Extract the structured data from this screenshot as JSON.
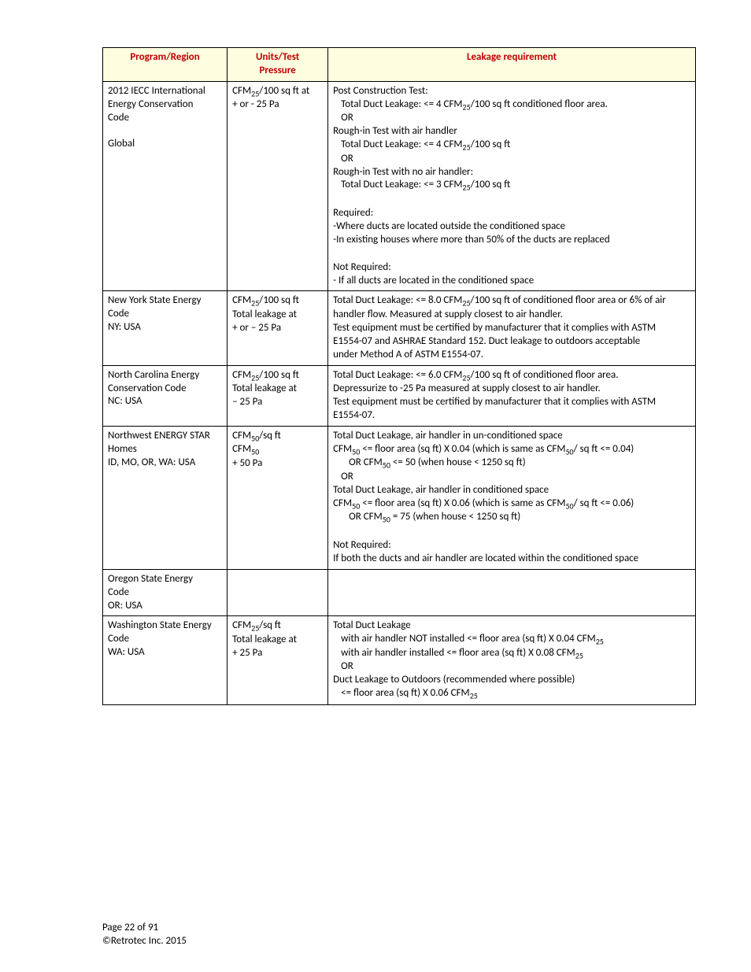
{
  "table": {
    "headers": {
      "col1": "Program/Region",
      "col2_line1": "Units/Test",
      "col2_line2": "Pressure",
      "col3": "Leakage requirement"
    },
    "headerStyle": {
      "background": "#fdfde0",
      "color": "#c00000",
      "fontWeight": "bold"
    },
    "rows": [
      {
        "program_l1": "2012 IECC International",
        "program_l2": "Energy Conservation",
        "program_l3": "Code",
        "program_l4": "",
        "program_l5": "Global",
        "units_l1_pre": "CFM",
        "units_l1_sub": "25",
        "units_l1_post": "/100 sq ft at",
        "units_l2": "+ or - 25 Pa",
        "req": {
          "l1": "Post Construction Test:",
          "l2_pre": "Total Duct Leakage:  <= 4 CFM",
          "l2_sub": "25",
          "l2_post": "/100 sq ft conditioned floor area.",
          "l3": "OR",
          "l4": "Rough-in Test with air handler",
          "l5_pre": "Total Duct Leakage:  <= 4 CFM",
          "l5_sub": "25",
          "l5_post": "/100 sq ft",
          "l6": "OR",
          "l7": "Rough-in Test with no air handler:",
          "l8_pre": "Total Duct Leakage:  <= 3 CFM",
          "l8_sub": "25",
          "l8_post": "/100 sq ft",
          "l9": "Required:",
          "l10": "-Where ducts are located outside the conditioned space",
          "l11": "-In existing houses where more than 50% of the ducts are replaced",
          "l12": "Not Required:",
          "l13": "- If all ducts are located in the conditioned space"
        }
      },
      {
        "program_l1": "New York State Energy",
        "program_l2": "Code",
        "program_l3": "NY:  USA",
        "units_l1_pre": "CFM",
        "units_l1_sub": "25",
        "units_l1_post": "/100 sq ft",
        "units_l2": "Total leakage at",
        "units_l3": "+ or – 25 Pa",
        "req": {
          "l1_pre": "Total Duct Leakage:  <= 8.0 CFM",
          "l1_sub": "25",
          "l1_post": "/100 sq ft of conditioned floor area or 6% of air",
          "l2": "handler flow.  Measured at supply closest to air handler.",
          "l3": "Test equipment must be certified by manufacturer that it complies with ASTM",
          "l4": "E1554-07 and ASHRAE Standard 152.  Duct leakage to outdoors acceptable",
          "l5": "under Method A of ASTM E1554-07."
        }
      },
      {
        "program_l1": "North Carolina Energy",
        "program_l2": "Conservation Code",
        "program_l3": "NC: USA",
        "units_l1_pre": "CFM",
        "units_l1_sub": "25",
        "units_l1_post": "/100 sq ft",
        "units_l2": "Total leakage at",
        "units_l3": "– 25 Pa",
        "req": {
          "l1_pre": "Total Duct Leakage:  <= 6.0 CFM",
          "l1_sub": "25",
          "l1_post": "/100 sq ft of conditioned floor area.",
          "l2": "Depressurize to -25 Pa measured at supply closest to air handler.",
          "l3": "Test equipment must be certified by manufacturer that it complies with ASTM",
          "l4": "E1554-07."
        }
      },
      {
        "program_l1": "Northwest ENERGY STAR",
        "program_l2": "Homes",
        "program_l3": "ID, MO, OR, WA:  USA",
        "units_l1_pre": "CFM",
        "units_l1_sub": "50",
        "units_l1_post": "/sq ft",
        "units_l2_pre": "CFM",
        "units_l2_sub": "50",
        "units_l3": "+ 50 Pa",
        "req": {
          "l1": "Total Duct Leakage, air handler in un-conditioned space",
          "l2_pre": "CFM",
          "l2_sub": "50",
          "l2_mid": " <= floor area (sq ft) X 0.04 (which is same as CFM",
          "l2_sub2": "50",
          "l2_post": "/ sq ft <= 0.04)",
          "l3_pre": "OR CFM",
          "l3_sub": "50",
          "l3_post": " <= 50 (when house < 1250 sq ft)",
          "l4": "OR",
          "l5": "Total Duct Leakage, air handler in conditioned space",
          "l6_pre": "CFM",
          "l6_sub": "50",
          "l6_mid": " <= floor area (sq ft) X 0.06 (which is same as CFM",
          "l6_sub2": "50",
          "l6_post": "/ sq ft <= 0.06)",
          "l7_pre": "OR CFM",
          "l7_sub": "50",
          "l7_post": " = 75 (when house < 1250 sq ft)",
          "l8": "Not Required:",
          "l9": "If both the ducts and air handler are located within the conditioned space"
        }
      },
      {
        "program_l1": "Oregon State Energy",
        "program_l2": "Code",
        "program_l3": "OR:  USA"
      },
      {
        "program_l1": "Washington State Energy",
        "program_l2": "Code",
        "program_l3": "WA:  USA",
        "units_l1_pre": "CFM",
        "units_l1_sub": "25",
        "units_l1_post": "/sq ft",
        "units_l2": "Total leakage at",
        "units_l3": "+ 25 Pa",
        "req": {
          "l1": "Total Duct Leakage",
          "l2_pre": "with air handler NOT installed <= floor area (sq ft) X 0.04 CFM",
          "l2_sub": "25",
          "l3_pre": "with air handler installed <= floor area (sq ft) X 0.08 CFM",
          "l3_sub": "25",
          "l4": "OR",
          "l5": "Duct Leakage to Outdoors (recommended where possible)",
          "l6_pre": "<= floor area (sq ft) X 0.06 CFM",
          "l6_sub": "25"
        }
      }
    ]
  },
  "footer": {
    "page": "Page 22 of 91",
    "copyright": "©Retrotec Inc. 2015"
  }
}
